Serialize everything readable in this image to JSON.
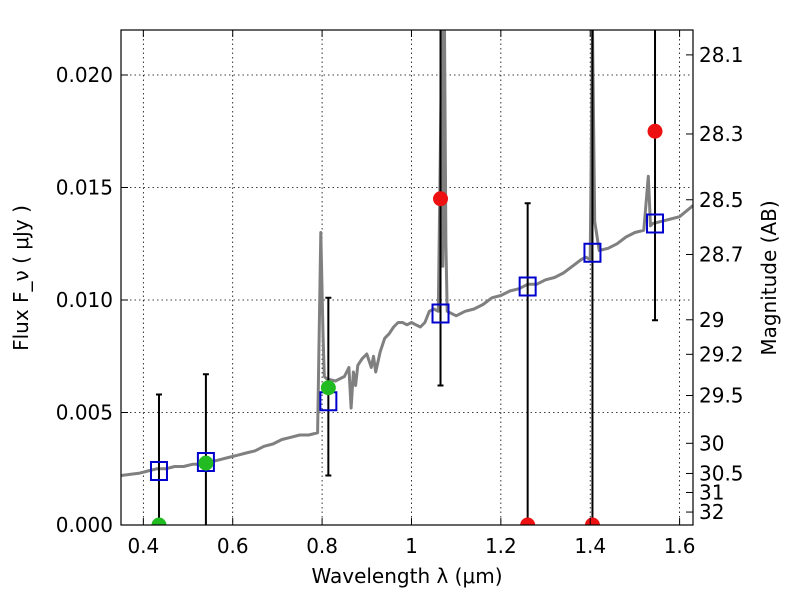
{
  "chart_data": {
    "type": "scatter",
    "xlabel": "Wavelength  λ (μm)",
    "ylabel": "Flux  F_ν  ( μJy )",
    "y2label": "Magnitude (AB)",
    "xlim": [
      0.35,
      1.63
    ],
    "ylim": [
      0.0,
      0.022
    ],
    "grid": true,
    "x_ticks": [
      0.4,
      0.6,
      0.8,
      1.0,
      1.2,
      1.4,
      1.6
    ],
    "x_tick_labels": [
      "0.4",
      "0.6",
      "0.8",
      "1",
      "1.2",
      "1.4",
      "1.6"
    ],
    "y_ticks": [
      0.0,
      0.005,
      0.01,
      0.015,
      0.02
    ],
    "y_tick_labels": [
      "0.000",
      "0.005",
      "0.010",
      "0.015",
      "0.020"
    ],
    "mag_ticks": [
      28.1,
      28.3,
      28.5,
      28.7,
      29,
      29.2,
      29.5,
      30,
      30.5,
      31,
      32
    ],
    "mag_tick_labels": [
      "28.1",
      "28.3",
      "28.5",
      "28.7",
      "29",
      "29.2",
      "29.5",
      "30",
      "30.5",
      "31",
      "32"
    ],
    "colors": {
      "template": "#808080",
      "model_points": "#0000cc",
      "detections": "#22bb22",
      "measurements": "#ee1111",
      "errorbars": "#000000"
    },
    "series": [
      {
        "kind": "model_bands",
        "marker": "open-square",
        "points": [
          {
            "x": 0.435,
            "y": 0.0024
          },
          {
            "x": 0.54,
            "y": 0.0028
          },
          {
            "x": 0.814,
            "y": 0.0055
          },
          {
            "x": 1.065,
            "y": 0.0094
          },
          {
            "x": 1.26,
            "y": 0.0106
          },
          {
            "x": 1.405,
            "y": 0.0121
          },
          {
            "x": 1.545,
            "y": 0.0134
          }
        ]
      },
      {
        "kind": "detections",
        "marker": "filled-circle",
        "points": [
          {
            "x": 0.435,
            "y": 0.0,
            "yerr_low": 0.0,
            "yerr_high": 0.0
          },
          {
            "x": 0.54,
            "y": 0.00275,
            "yerr_low": 0.0,
            "yerr_high": 0.0067
          },
          {
            "x": 0.814,
            "y": 0.0061,
            "yerr_low": 0.0022,
            "yerr_high": 0.0101
          }
        ]
      },
      {
        "kind": "measurements",
        "marker": "filled-circle",
        "points": [
          {
            "x": 1.065,
            "y": 0.0145,
            "yerr_low": 0.0062,
            "yerr_high": 0.022
          },
          {
            "x": 1.26,
            "y": 0.0,
            "yerr_low": 0.0,
            "yerr_high": 0.0143
          },
          {
            "x": 1.405,
            "y": 0.0,
            "yerr_low": 0.0,
            "yerr_high": 0.022
          },
          {
            "x": 1.545,
            "y": 0.0175,
            "yerr_low": 0.0091,
            "yerr_high": 0.022
          }
        ]
      },
      {
        "kind": "errorbar_only",
        "points": [
          {
            "x": 0.435,
            "y": 0.0,
            "yerr_low": 0.0,
            "yerr_high": 0.0058
          }
        ]
      }
    ],
    "template_spectrum": {
      "x": [
        0.35,
        0.37,
        0.39,
        0.41,
        0.43,
        0.45,
        0.47,
        0.49,
        0.51,
        0.53,
        0.55,
        0.57,
        0.59,
        0.61,
        0.63,
        0.65,
        0.67,
        0.69,
        0.71,
        0.73,
        0.75,
        0.77,
        0.79,
        0.797,
        0.802,
        0.805,
        0.81,
        0.83,
        0.85,
        0.86,
        0.865,
        0.87,
        0.875,
        0.88,
        0.89,
        0.9,
        0.91,
        0.915,
        0.92,
        0.93,
        0.94,
        0.95,
        0.96,
        0.97,
        0.98,
        0.99,
        1.0,
        1.01,
        1.02,
        1.03,
        1.04,
        1.05,
        1.06,
        1.068,
        1.07,
        1.074,
        1.077,
        1.08,
        1.1,
        1.12,
        1.14,
        1.16,
        1.18,
        1.2,
        1.22,
        1.24,
        1.26,
        1.28,
        1.3,
        1.32,
        1.34,
        1.36,
        1.38,
        1.39,
        1.4,
        1.405,
        1.41,
        1.42,
        1.44,
        1.46,
        1.48,
        1.5,
        1.52,
        1.53,
        1.535,
        1.54,
        1.56,
        1.58,
        1.6,
        1.63
      ],
      "y": [
        0.0022,
        0.00225,
        0.0023,
        0.0024,
        0.0025,
        0.0025,
        0.0026,
        0.0026,
        0.0027,
        0.0027,
        0.0028,
        0.0029,
        0.003,
        0.0031,
        0.0032,
        0.0033,
        0.0035,
        0.0036,
        0.0038,
        0.0039,
        0.004,
        0.004,
        0.0041,
        0.013,
        0.0085,
        0.0066,
        0.0065,
        0.0064,
        0.0066,
        0.007,
        0.0052,
        0.0068,
        0.0062,
        0.0071,
        0.0074,
        0.0076,
        0.007,
        0.0075,
        0.0068,
        0.0077,
        0.0083,
        0.0085,
        0.0088,
        0.009,
        0.009,
        0.0089,
        0.009,
        0.0089,
        0.0088,
        0.009,
        0.0095,
        0.0096,
        0.0095,
        0.022,
        0.0115,
        0.022,
        0.0125,
        0.0095,
        0.0093,
        0.0095,
        0.0096,
        0.0098,
        0.0101,
        0.0102,
        0.0104,
        0.0105,
        0.0107,
        0.0107,
        0.0109,
        0.011,
        0.0112,
        0.0115,
        0.0118,
        0.0119,
        0.0118,
        0.022,
        0.0135,
        0.0122,
        0.0123,
        0.0125,
        0.0128,
        0.013,
        0.0131,
        0.0155,
        0.0133,
        0.0134,
        0.0135,
        0.0136,
        0.0137,
        0.0142
      ]
    }
  }
}
